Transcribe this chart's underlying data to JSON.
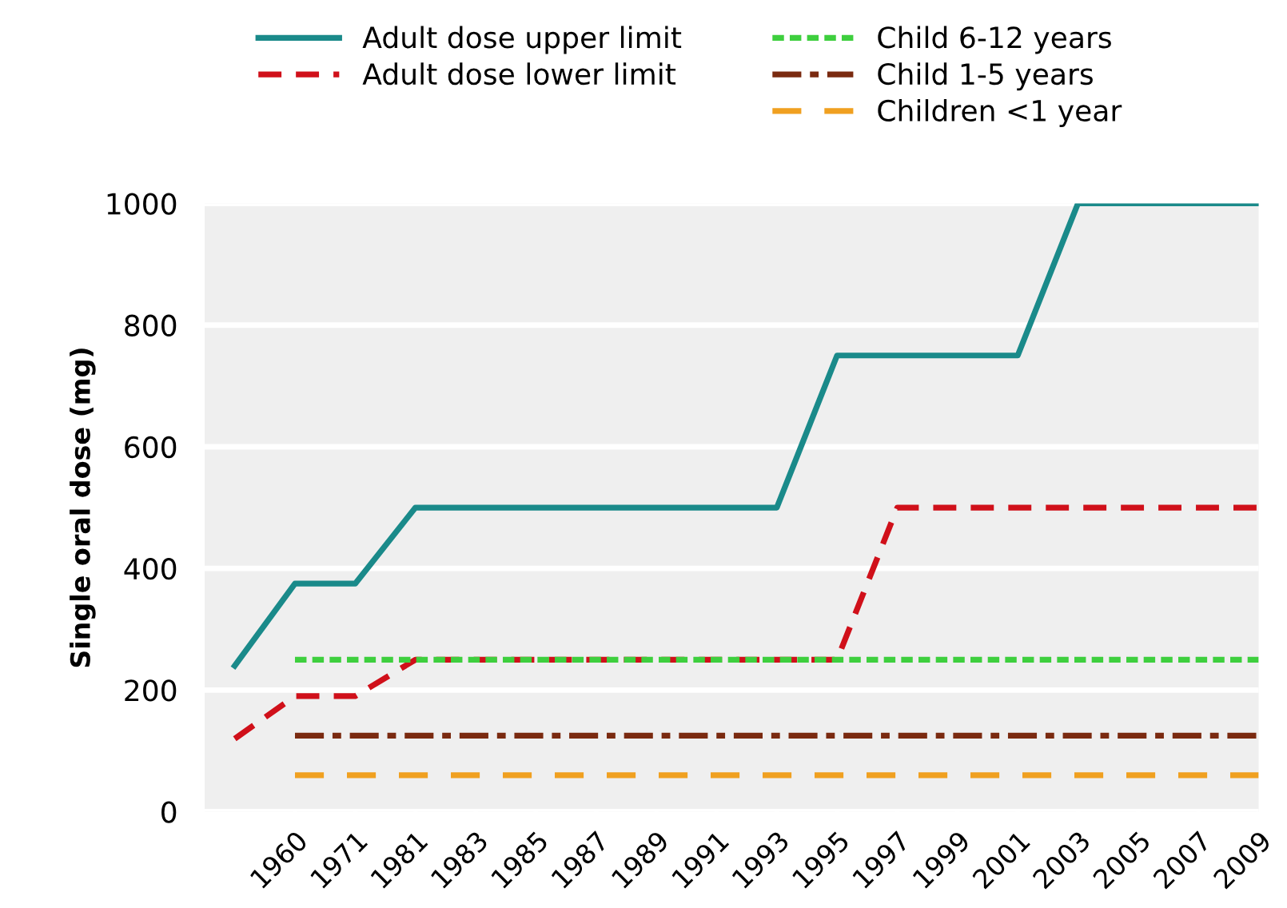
{
  "chart_data": {
    "type": "line",
    "ylabel": "Single oral dose (mg)",
    "categories": [
      null,
      "1960",
      "1971",
      "1981",
      "1983",
      "1985",
      "1987",
      "1989",
      "1991",
      "1993",
      "1995",
      "1997",
      "1999",
      "2001",
      "2003",
      "2005",
      "2007",
      "2009"
    ],
    "ylim": [
      0,
      1000
    ],
    "yticks": [
      0,
      200,
      400,
      600,
      800,
      1000
    ],
    "grid": "y",
    "legend": "top",
    "series": [
      {
        "name": "Adult dose upper limit",
        "color": "#1a8a8a",
        "line_style": "solid",
        "values": [
          240,
          375,
          375,
          500,
          500,
          500,
          500,
          500,
          500,
          500,
          750,
          750,
          750,
          750,
          1000,
          1000,
          1000,
          1000
        ]
      },
      {
        "name": "Adult dose lower limit",
        "color": "#d0101a",
        "line_style": "dashed",
        "values": [
          120,
          190,
          190,
          250,
          250,
          250,
          250,
          250,
          250,
          250,
          250,
          500,
          500,
          500,
          500,
          500,
          500,
          500
        ]
      },
      {
        "name": "Child 6-12 years",
        "color": "#3ecf3e",
        "line_style": "dotted",
        "values": [
          null,
          250,
          250,
          250,
          250,
          250,
          250,
          250,
          250,
          250,
          250,
          250,
          250,
          250,
          250,
          250,
          250,
          250
        ]
      },
      {
        "name": "Child 1-5 years",
        "color": "#7a2a10",
        "line_style": "dashdot",
        "values": [
          null,
          125,
          125,
          125,
          125,
          125,
          125,
          125,
          125,
          125,
          125,
          125,
          125,
          125,
          125,
          125,
          125,
          125
        ]
      },
      {
        "name": "Children <1 year",
        "color": "#f0a020",
        "line_style": "longdash",
        "values": [
          null,
          60,
          60,
          60,
          60,
          60,
          60,
          60,
          60,
          60,
          60,
          60,
          60,
          60,
          60,
          60,
          60,
          60
        ]
      }
    ]
  }
}
